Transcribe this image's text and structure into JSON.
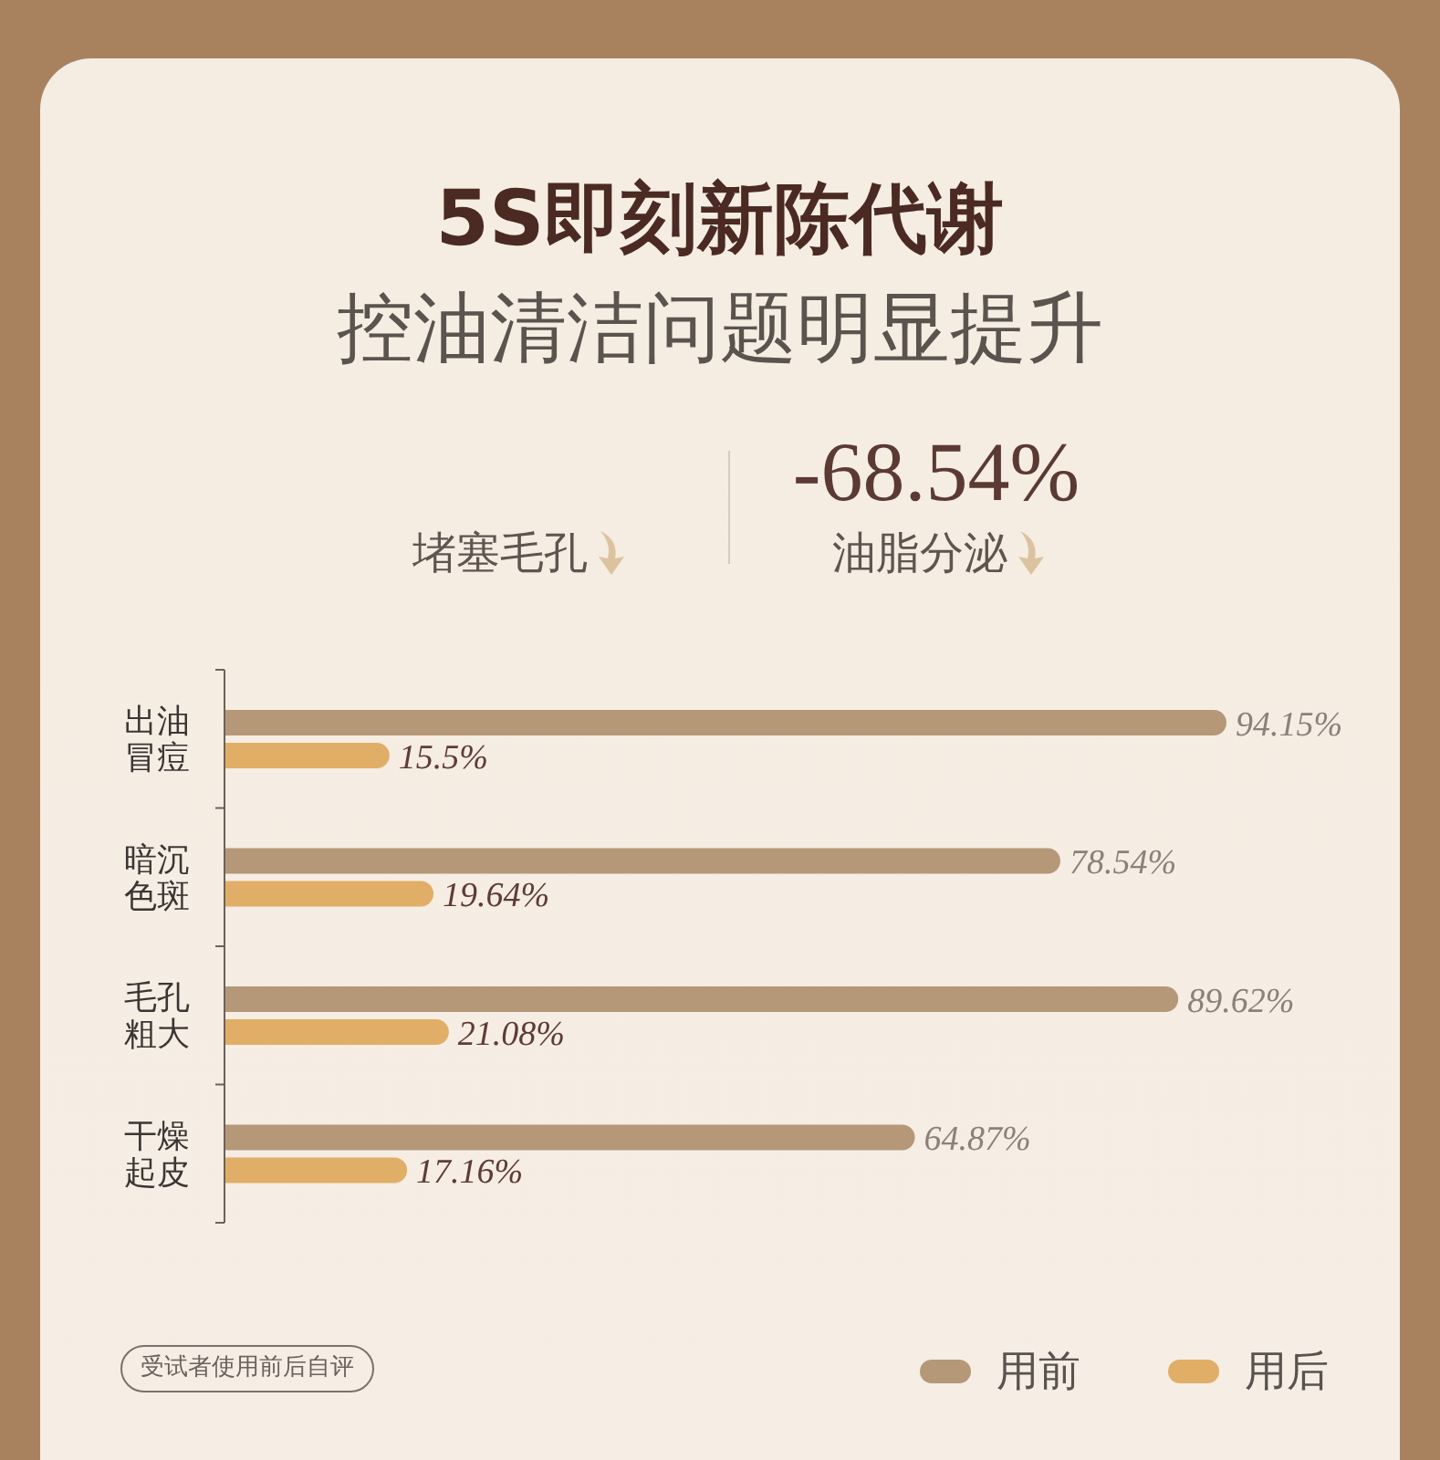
{
  "chart_data": {
    "type": "bar",
    "orientation": "horizontal",
    "title": "5S即刻新陈代谢",
    "subtitle": "控油清洁问题明显提升",
    "annotations": [
      "堵塞毛孔",
      "-68.54%",
      "油脂分泌",
      "受试者使用前后自评"
    ],
    "categories": [
      "出油冒痘",
      "暗沉色斑",
      "毛孔粗大",
      "干燥起皮"
    ],
    "series": [
      {
        "name": "用前",
        "color": "#b59878",
        "values": [
          94.15,
          78.54,
          89.62,
          64.87
        ],
        "value_labels": [
          "94.15%",
          "78.54%",
          "89.62%",
          "64.87%"
        ]
      },
      {
        "name": "用后",
        "color": "#e0ae66",
        "values": [
          15.5,
          19.64,
          21.08,
          17.16
        ],
        "value_labels": [
          "15.5%",
          "19.64%",
          "21.08%",
          "17.16%"
        ]
      }
    ],
    "legend": "bottom right",
    "tick_labels": "y"
  }
}
